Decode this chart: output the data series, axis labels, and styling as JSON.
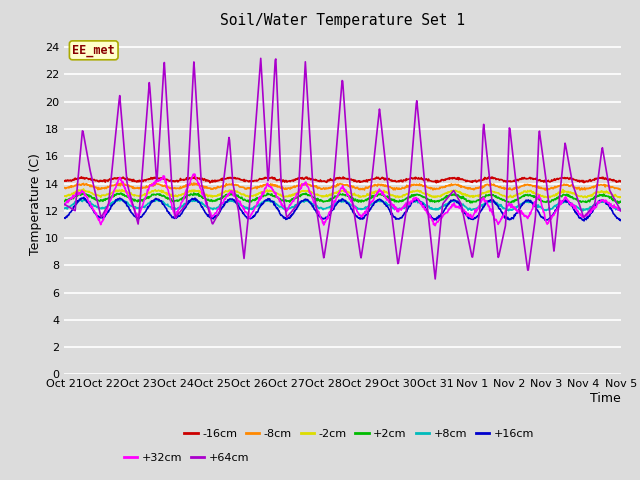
{
  "title": "Soil/Water Temperature Set 1",
  "xlabel": "Time",
  "ylabel": "Temperature (C)",
  "ylim": [
    0,
    25
  ],
  "yticks": [
    0,
    2,
    4,
    6,
    8,
    10,
    12,
    14,
    16,
    18,
    20,
    22,
    24
  ],
  "bg_color": "#dcdcdc",
  "plot_bg": "#dcdcdc",
  "annotation_text": "EE_met",
  "annotation_bg": "#ffffcc",
  "annotation_border": "#aaaa00",
  "annotation_text_color": "#880000",
  "series": [
    {
      "label": "-16cm",
      "color": "#cc0000",
      "base": 14.3,
      "amplitude": 0.12,
      "trend": -0.03
    },
    {
      "label": "-8cm",
      "color": "#ff8800",
      "base": 13.8,
      "amplitude": 0.15,
      "trend": -0.06
    },
    {
      "label": "-2cm",
      "color": "#dddd00",
      "base": 13.3,
      "amplitude": 0.2,
      "trend": -0.09
    },
    {
      "label": "+2cm",
      "color": "#00bb00",
      "base": 13.0,
      "amplitude": 0.25,
      "trend": -0.11
    },
    {
      "label": "+8cm",
      "color": "#00bbbb",
      "base": 12.5,
      "amplitude": 0.3,
      "trend": -0.14
    },
    {
      "label": "+16cm",
      "color": "#0000cc",
      "base": 12.2,
      "amplitude": 0.7,
      "trend": -0.16
    },
    {
      "label": "+32cm",
      "color": "#ff00ff",
      "base": 12.5,
      "amplitude": 1.3,
      "trend": -0.18
    },
    {
      "label": "+64cm",
      "color": "#aa00cc",
      "base": 13.0,
      "amplitude": 0.0,
      "trend": 0.0
    }
  ],
  "x_tick_labels": [
    "Oct 21",
    "Oct 22",
    "Oct 23",
    "Oct 24",
    "Oct 25",
    "Oct 26",
    "Oct 27",
    "Oct 28",
    "Oct 29",
    "Oct 30",
    "Oct 31",
    "Nov 1",
    "Nov 2",
    "Nov 3",
    "Nov 4",
    "Nov 5"
  ],
  "n_points": 1000
}
